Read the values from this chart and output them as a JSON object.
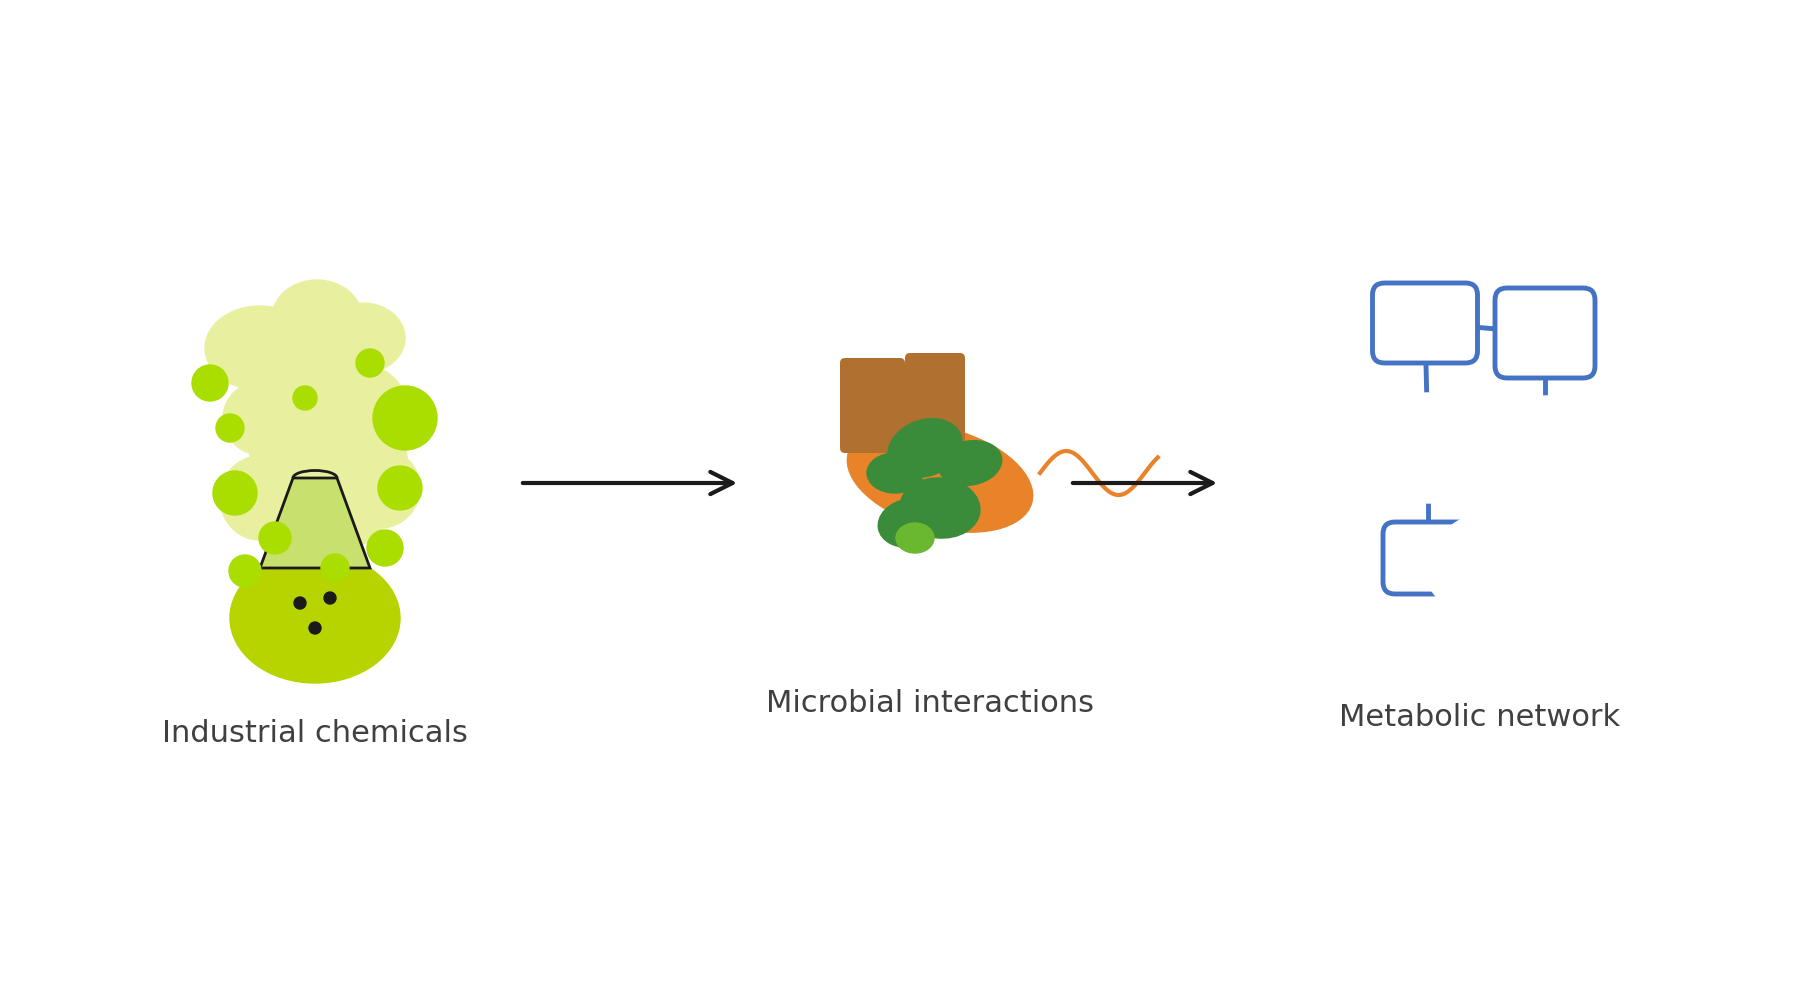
{
  "background_color": "#ffffff",
  "labels": [
    "Industrial chemicals",
    "Microbial interactions",
    "Metabolic network"
  ],
  "label_fontsize": 22,
  "label_color": "#404040",
  "arrow_color": "#1a1a1a",
  "network_color": "#4472c4",
  "network_lw": 3.5,
  "flask_body_color": "#c8e06e",
  "flask_liquid_color": "#b8d400",
  "flask_outline_color": "#1a1a1a",
  "bubble_color": "#aadd00",
  "foam_color": "#e8f0a0",
  "microbe_orange": "#e8832a",
  "microbe_green_dark": "#3a8c3a",
  "microbe_green_light": "#6ab830",
  "microbe_brown": "#b07030",
  "microbe_gray": "#888888"
}
